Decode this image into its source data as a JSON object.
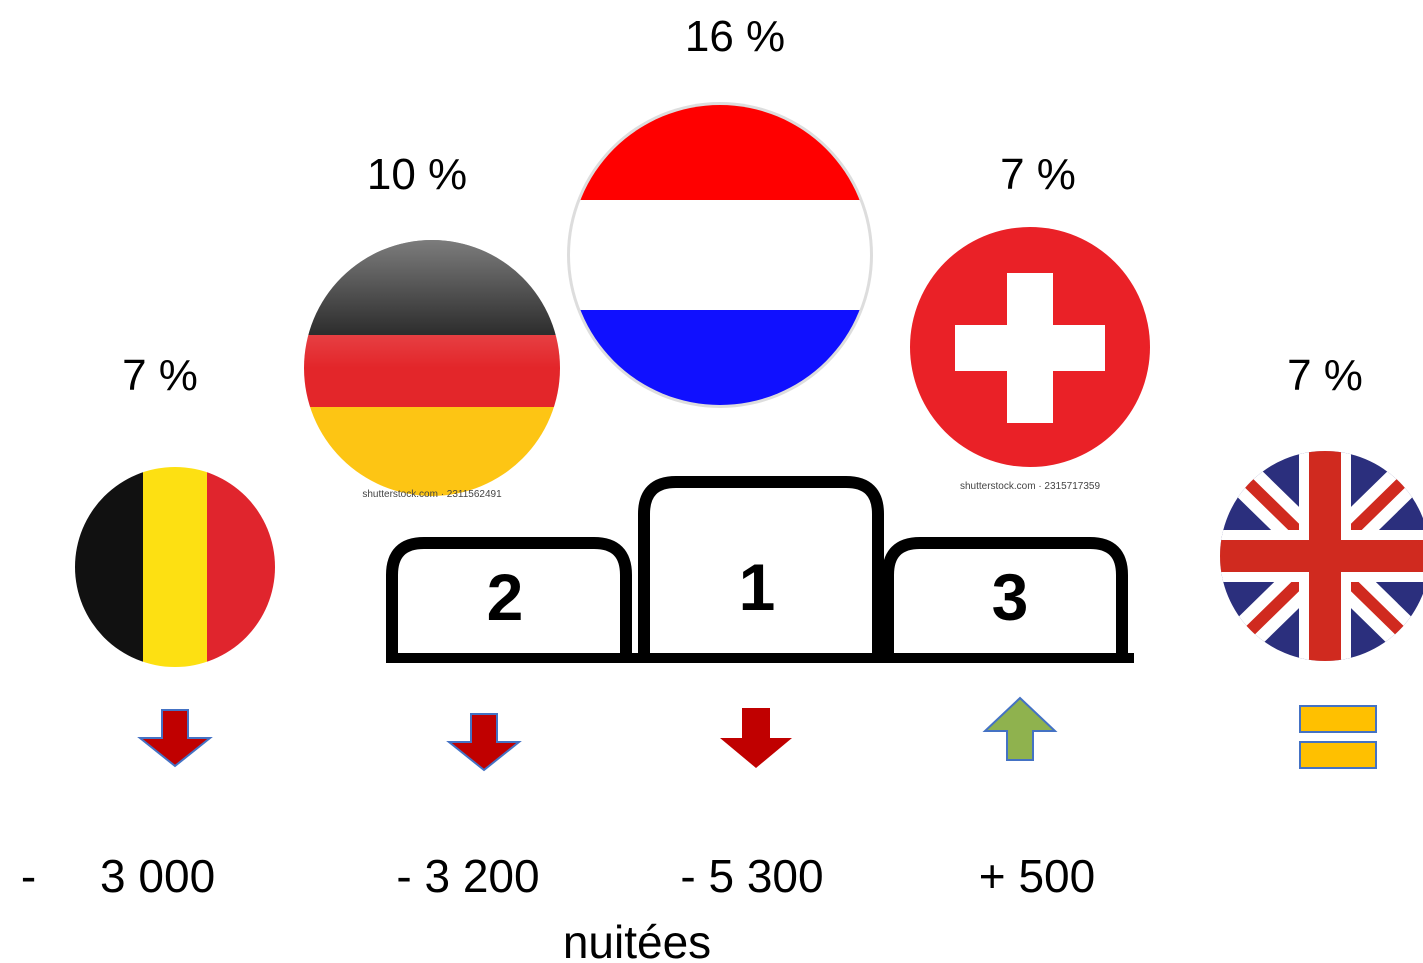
{
  "countries": [
    {
      "share": "7 %",
      "change": "-     3 000"
    },
    {
      "share": "10 %",
      "change": "- 3 200",
      "watermark": "shutterstock.com · 2311562491"
    },
    {
      "share": "16 %",
      "change": "- 5 300"
    },
    {
      "share": "7 %",
      "change": "+ 500",
      "watermark": "shutterstock.com · 2315717359"
    },
    {
      "share": "7 %"
    }
  ],
  "podium": [
    "1",
    "2",
    "3"
  ],
  "unit": "nuitées"
}
